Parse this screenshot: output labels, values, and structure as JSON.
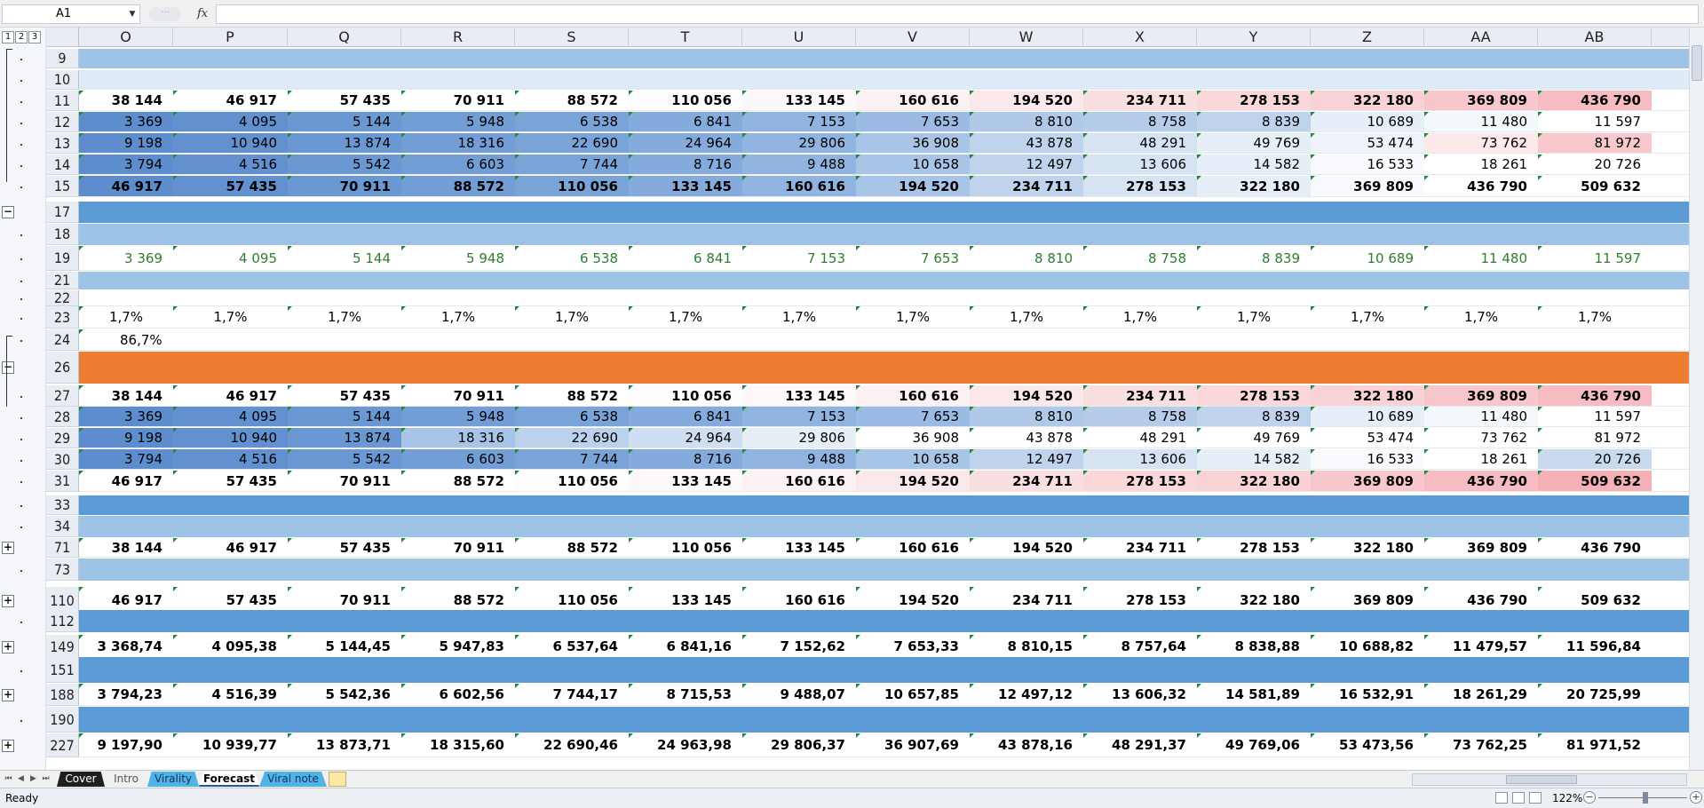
{
  "window": {
    "name_box": "A1",
    "fx_label": "fx",
    "formula_value": ""
  },
  "outline_levels": [
    "1",
    "2",
    "3"
  ],
  "outline_buttons": [
    {
      "row": "17",
      "symbol": "−"
    },
    {
      "row": "26",
      "symbol": "−"
    },
    {
      "row": "71",
      "symbol": "+"
    },
    {
      "row": "110",
      "symbol": "+"
    },
    {
      "row": "149",
      "symbol": "+"
    },
    {
      "row": "188",
      "symbol": "+"
    },
    {
      "row": "227",
      "symbol": "+"
    }
  ],
  "columns": [
    "O",
    "P",
    "Q",
    "R",
    "S",
    "T",
    "U",
    "V",
    "W",
    "X",
    "Y",
    "Z",
    "AA",
    "AB"
  ],
  "colors": {
    "band_light": "#9dc3e6",
    "band_dark": "#5b9bd5",
    "band_pale": "#deebf7",
    "orange": "#ed7d31",
    "green_text": "#2e7d32",
    "outline": "#1e8a3c"
  },
  "rows": [
    {
      "label": "9",
      "fill": "#9dc3e6",
      "values": []
    },
    {
      "label": "10",
      "fill": "#deebf7",
      "values": []
    },
    {
      "label": "11",
      "bold": true,
      "values": [
        "38 144",
        "46 917",
        "57 435",
        "70 911",
        "88 572",
        "110 056",
        "133 145",
        "160 616",
        "194 520",
        "234 711",
        "278 153",
        "322 180",
        "369 809",
        "436 790"
      ],
      "colors": [
        "#ffffff",
        "#ffffff",
        "#ffffff",
        "#ffffff",
        "#ffffff",
        "#fefcfc",
        "#fdf8f9",
        "#fcf1f3",
        "#fbe8ea",
        "#fadfe1",
        "#fad7d9",
        "#f9d2d5",
        "#f8c7cb",
        "#f7bcc1"
      ]
    },
    {
      "label": "12",
      "values": [
        "3 369",
        "4 095",
        "5 144",
        "5 948",
        "6 538",
        "6 841",
        "7 153",
        "7 653",
        "8 810",
        "8 758",
        "8 839",
        "10 689",
        "11 480",
        "11 597"
      ],
      "colors": [
        "#5d8dcd",
        "#6391d0",
        "#6b97d2",
        "#739dd5",
        "#7aa3d8",
        "#84abdb",
        "#90b3e0",
        "#9cbbe4",
        "#b0c9e9",
        "#b6cde9",
        "#c0d3ec",
        "#e6eef8",
        "#f4f7fc",
        "#ffffff"
      ]
    },
    {
      "label": "13",
      "values": [
        "9 198",
        "10 940",
        "13 874",
        "18 316",
        "22 690",
        "24 964",
        "29 806",
        "36 908",
        "43 878",
        "48 291",
        "49 769",
        "53 474",
        "73 762",
        "81 972"
      ],
      "colors": [
        "#5d8dcd",
        "#6391d0",
        "#6b97d2",
        "#739dd5",
        "#7aa3d8",
        "#84abdb",
        "#90b3e0",
        "#a8c4e7",
        "#c0d3ec",
        "#d6e3f3",
        "#e6eef8",
        "#eef3fa",
        "#fde8ea",
        "#f8c8cd"
      ]
    },
    {
      "label": "14",
      "values": [
        "3 794",
        "4 516",
        "5 542",
        "6 603",
        "7 744",
        "8 716",
        "9 488",
        "10 658",
        "12 497",
        "13 606",
        "14 582",
        "16 533",
        "18 261",
        "20 726"
      ],
      "colors": [
        "#5d8dcd",
        "#6391d0",
        "#6b97d2",
        "#739dd5",
        "#7aa3d8",
        "#84abdb",
        "#90b3e0",
        "#a8c4e7",
        "#c0d3ec",
        "#d6e3f3",
        "#e6eef8",
        "#f8fafd",
        "#ffffff",
        "#ffffff"
      ]
    },
    {
      "label": "15",
      "bold": true,
      "values": [
        "46 917",
        "57 435",
        "70 911",
        "88 572",
        "110 056",
        "133 145",
        "160 616",
        "194 520",
        "234 711",
        "278 153",
        "322 180",
        "369 809",
        "436 790",
        "509 632"
      ],
      "colors": [
        "#5d8dcd",
        "#6391d0",
        "#6b97d2",
        "#739dd5",
        "#7aa3d8",
        "#84abdb",
        "#90b3e0",
        "#a8c4e7",
        "#c0d3ec",
        "#d6e3f3",
        "#e6eef8",
        "#f8fafd",
        "#ffffff",
        "#ffffff"
      ]
    },
    {
      "label": "17",
      "fill": "#5b9bd5",
      "values": []
    },
    {
      "label": "18",
      "fill": "#9dc3e6",
      "values": []
    },
    {
      "label": "19",
      "green": true,
      "values": [
        "3 369",
        "4 095",
        "5 144",
        "5 948",
        "6 538",
        "6 841",
        "7 153",
        "7 653",
        "8 810",
        "8 758",
        "8 839",
        "10 689",
        "11 480",
        "11 597"
      ]
    },
    {
      "label": "21",
      "fill": "#9dc3e6",
      "values": []
    },
    {
      "label": "22",
      "values": []
    },
    {
      "label": "23",
      "pct": true,
      "values": [
        "1,7%",
        "1,7%",
        "1,7%",
        "1,7%",
        "1,7%",
        "1,7%",
        "1,7%",
        "1,7%",
        "1,7%",
        "1,7%",
        "1,7%",
        "1,7%",
        "1,7%",
        "1,7%"
      ]
    },
    {
      "label": "24",
      "pct": true,
      "values": [
        "86,7%"
      ]
    },
    {
      "label": "26",
      "fill": "#ed7d31",
      "values": []
    },
    {
      "label": "27",
      "bold": true,
      "values": [
        "38 144",
        "46 917",
        "57 435",
        "70 911",
        "88 572",
        "110 056",
        "133 145",
        "160 616",
        "194 520",
        "234 711",
        "278 153",
        "322 180",
        "369 809",
        "436 790"
      ],
      "colors": [
        "#ffffff",
        "#ffffff",
        "#ffffff",
        "#ffffff",
        "#ffffff",
        "#fefcfc",
        "#fdf8f9",
        "#fcf1f3",
        "#fbe8ea",
        "#fadfe1",
        "#fad7d9",
        "#f9d2d5",
        "#f8c7cb",
        "#f7bcc1"
      ]
    },
    {
      "label": "28",
      "values": [
        "3 369",
        "4 095",
        "5 144",
        "5 948",
        "6 538",
        "6 841",
        "7 153",
        "7 653",
        "8 810",
        "8 758",
        "8 839",
        "10 689",
        "11 480",
        "11 597"
      ],
      "colors": [
        "#5d8dcd",
        "#6391d0",
        "#6b97d2",
        "#739dd5",
        "#7aa3d8",
        "#84abdb",
        "#90b3e0",
        "#9cbbe4",
        "#b0c9e9",
        "#b6cde9",
        "#c0d3ec",
        "#e6eef8",
        "#f4f7fc",
        "#ffffff"
      ]
    },
    {
      "label": "29",
      "values": [
        "9 198",
        "10 940",
        "13 874",
        "18 316",
        "22 690",
        "24 964",
        "29 806",
        "36 908",
        "43 878",
        "48 291",
        "49 769",
        "53 474",
        "73 762",
        "81 972"
      ],
      "colors": [
        "#5d8dcd",
        "#6391d0",
        "#6b97d2",
        "#a8c4e7",
        "#bcd1ec",
        "#d0def1",
        "#e6eef8",
        "#ffffff",
        "#ffffff",
        "#ffffff",
        "#ffffff",
        "#ffffff",
        "#ffffff",
        "#ffffff"
      ]
    },
    {
      "label": "30",
      "values": [
        "3 794",
        "4 516",
        "5 542",
        "6 603",
        "7 744",
        "8 716",
        "9 488",
        "10 658",
        "12 497",
        "13 606",
        "14 582",
        "16 533",
        "18 261",
        "20 726"
      ],
      "colors": [
        "#5d8dcd",
        "#6391d0",
        "#6b97d2",
        "#739dd5",
        "#7aa3d8",
        "#84abdb",
        "#90b3e0",
        "#a8c4e7",
        "#c0d3ec",
        "#d6e3f3",
        "#e6eef8",
        "#f8fafd",
        "#ffffff",
        "#c9d9ee"
      ]
    },
    {
      "label": "31",
      "bold": true,
      "values": [
        "46 917",
        "57 435",
        "70 911",
        "88 572",
        "110 056",
        "133 145",
        "160 616",
        "194 520",
        "234 711",
        "278 153",
        "322 180",
        "369 809",
        "436 790",
        "509 632"
      ],
      "colors": [
        "#ffffff",
        "#ffffff",
        "#ffffff",
        "#ffffff",
        "#fefcfc",
        "#fdf8f9",
        "#fcf1f3",
        "#fbe8ea",
        "#fadfe1",
        "#fad7d9",
        "#f9d2d5",
        "#f8c7cb",
        "#f7bcc1",
        "#f6b1b7"
      ]
    },
    {
      "label": "33",
      "fill": "#5b9bd5",
      "values": []
    },
    {
      "label": "34",
      "fill": "#9dc3e6",
      "values": []
    },
    {
      "label": "71",
      "bold": true,
      "values": [
        "38 144",
        "46 917",
        "57 435",
        "70 911",
        "88 572",
        "110 056",
        "133 145",
        "160 616",
        "194 520",
        "234 711",
        "278 153",
        "322 180",
        "369 809",
        "436 790"
      ]
    },
    {
      "label": "73",
      "fill": "#9dc3e6",
      "values": []
    },
    {
      "label": "110",
      "bold": true,
      "values": [
        "46 917",
        "57 435",
        "70 911",
        "88 572",
        "110 056",
        "133 145",
        "160 616",
        "194 520",
        "234 711",
        "278 153",
        "322 180",
        "369 809",
        "436 790",
        "509 632"
      ]
    },
    {
      "label": "112",
      "fill": "#5b9bd5",
      "values": []
    },
    {
      "label": "149",
      "bold": true,
      "values": [
        "3 368,74",
        "4 095,38",
        "5 144,45",
        "5 947,83",
        "6 537,64",
        "6 841,16",
        "7 152,62",
        "7 653,33",
        "8 810,15",
        "8 757,64",
        "8 838,88",
        "10 688,82",
        "11 479,57",
        "11 596,84"
      ]
    },
    {
      "label": "151",
      "fill": "#5b9bd5",
      "values": []
    },
    {
      "label": "188",
      "bold": true,
      "values": [
        "3 794,23",
        "4 516,39",
        "5 542,36",
        "6 602,56",
        "7 744,17",
        "8 715,53",
        "9 488,07",
        "10 657,85",
        "12 497,12",
        "13 606,32",
        "14 581,89",
        "16 532,91",
        "18 261,29",
        "20 725,99"
      ]
    },
    {
      "label": "190",
      "fill": "#5b9bd5",
      "values": []
    },
    {
      "label": "227",
      "bold": true,
      "values": [
        "9 197,90",
        "10 939,77",
        "13 873,71",
        "18 315,60",
        "22 690,46",
        "24 963,98",
        "29 806,37",
        "36 907,69",
        "43 878,16",
        "48 291,37",
        "49 769,06",
        "53 473,56",
        "73 762,25",
        "81 971,52"
      ]
    }
  ],
  "sheet_tabs": [
    {
      "label": "Cover",
      "bg": "#1f1f1f",
      "fg": "#ffffff"
    },
    {
      "label": "Intro",
      "bg": "#f0f0f0",
      "fg": "#555555"
    },
    {
      "label": "Virality",
      "bg": "#4fb3e8",
      "fg": "#11335a"
    },
    {
      "label": "Forecast",
      "bg": "#ffffff",
      "fg": "#000000",
      "active": true
    },
    {
      "label": "Viral note",
      "bg": "#4fb3e8",
      "fg": "#11335a"
    }
  ],
  "status": {
    "ready": "Ready",
    "zoom": "122%",
    "zoom_out": "−",
    "zoom_in": "+"
  }
}
